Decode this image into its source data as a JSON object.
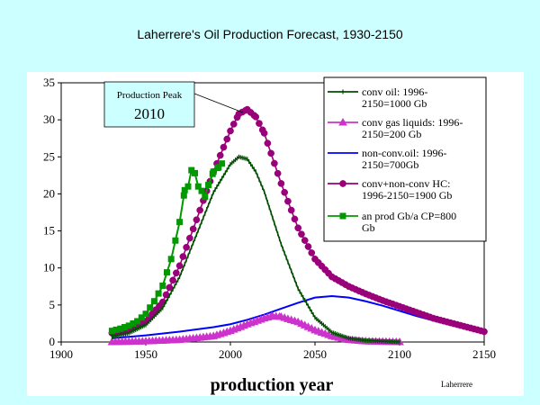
{
  "page": {
    "title": "Laherrere's Oil Production Forecast, 1930-2150"
  },
  "annotation": {
    "label": "Production Peak",
    "year": "2010"
  },
  "credit": "Laherrere",
  "chart_data": {
    "type": "line",
    "title": "Laherrere's Oil Production Forecast, 1930-2150",
    "xlabel": "production year",
    "ylabel": "",
    "xlim": [
      1900,
      2150
    ],
    "ylim": [
      0,
      35
    ],
    "xticks": [
      1900,
      1950,
      2000,
      2050,
      2100,
      2150
    ],
    "yticks": [
      0,
      5,
      10,
      15,
      20,
      25,
      30,
      35
    ],
    "grid": false,
    "legend_position": "top-right",
    "series": [
      {
        "name": "conv oil: 1996-2150=1000 Gb",
        "color": "#004d00",
        "marker": "dash",
        "x": [
          1930,
          1940,
          1950,
          1960,
          1970,
          1980,
          1990,
          2000,
          2005,
          2010,
          2015,
          2020,
          2030,
          2040,
          2050,
          2060,
          2070,
          2080,
          2090,
          2100
        ],
        "y": [
          0.7,
          1.2,
          2.3,
          4.6,
          8.8,
          14.5,
          20.2,
          24.0,
          25.0,
          24.7,
          23.0,
          20.3,
          13.2,
          7.2,
          3.3,
          1.3,
          0.5,
          0.2,
          0.1,
          0.0
        ]
      },
      {
        "name": "conv gas liquids: 1996-2150=200 Gb",
        "color": "#cc33cc",
        "marker": "triangle",
        "x": [
          1930,
          1950,
          1970,
          1990,
          2000,
          2010,
          2020,
          2025,
          2030,
          2040,
          2050,
          2060,
          2070,
          2080,
          2090,
          2100
        ],
        "y": [
          0.0,
          0.1,
          0.3,
          0.8,
          1.5,
          2.4,
          3.2,
          3.5,
          3.4,
          2.7,
          1.6,
          0.8,
          0.3,
          0.1,
          0.05,
          0.0
        ]
      },
      {
        "name": "non-conv.oil: 1996-2150=700Gb",
        "color": "#0000ff",
        "marker": "none",
        "x": [
          1930,
          1950,
          1970,
          1990,
          2000,
          2010,
          2020,
          2030,
          2040,
          2050,
          2060,
          2070,
          2080,
          2090,
          2100,
          2110,
          2120,
          2130,
          2140,
          2150
        ],
        "y": [
          0.5,
          0.9,
          1.4,
          2.0,
          2.4,
          3.0,
          3.7,
          4.5,
          5.3,
          6.0,
          6.2,
          6.0,
          5.5,
          4.9,
          4.2,
          3.5,
          2.9,
          2.3,
          1.8,
          1.4
        ]
      },
      {
        "name": "conv+non-conv HC: 1996-2150=1900 Gb",
        "color": "#99007a",
        "marker": "circle",
        "x": [
          1930,
          1940,
          1950,
          1960,
          1970,
          1980,
          1990,
          2000,
          2005,
          2010,
          2015,
          2020,
          2030,
          2040,
          2050,
          2060,
          2070,
          2080,
          2090,
          2100,
          2110,
          2120,
          2130,
          2140,
          2150
        ],
        "y": [
          1.2,
          1.7,
          2.8,
          5.4,
          10.3,
          16.5,
          23.0,
          28.5,
          30.8,
          31.4,
          30.4,
          28.2,
          21.4,
          15.4,
          11.2,
          8.8,
          7.5,
          6.5,
          5.6,
          4.8,
          4.0,
          3.2,
          2.6,
          2.0,
          1.4
        ]
      },
      {
        "name": "an prod Gb/a CP=800 Gb",
        "color": "#009900",
        "marker": "square",
        "x": [
          1930,
          1935,
          1940,
          1945,
          1950,
          1955,
          1960,
          1965,
          1970,
          1973,
          1975,
          1977,
          1979,
          1981,
          1983,
          1985,
          1987,
          1990,
          1993,
          1995
        ],
        "y": [
          1.5,
          1.8,
          2.2,
          2.8,
          3.8,
          5.5,
          7.6,
          11.2,
          16.2,
          20.5,
          21.0,
          23.2,
          22.8,
          21.0,
          20.4,
          19.6,
          21.2,
          23.0,
          23.6,
          24.1
        ]
      }
    ]
  }
}
